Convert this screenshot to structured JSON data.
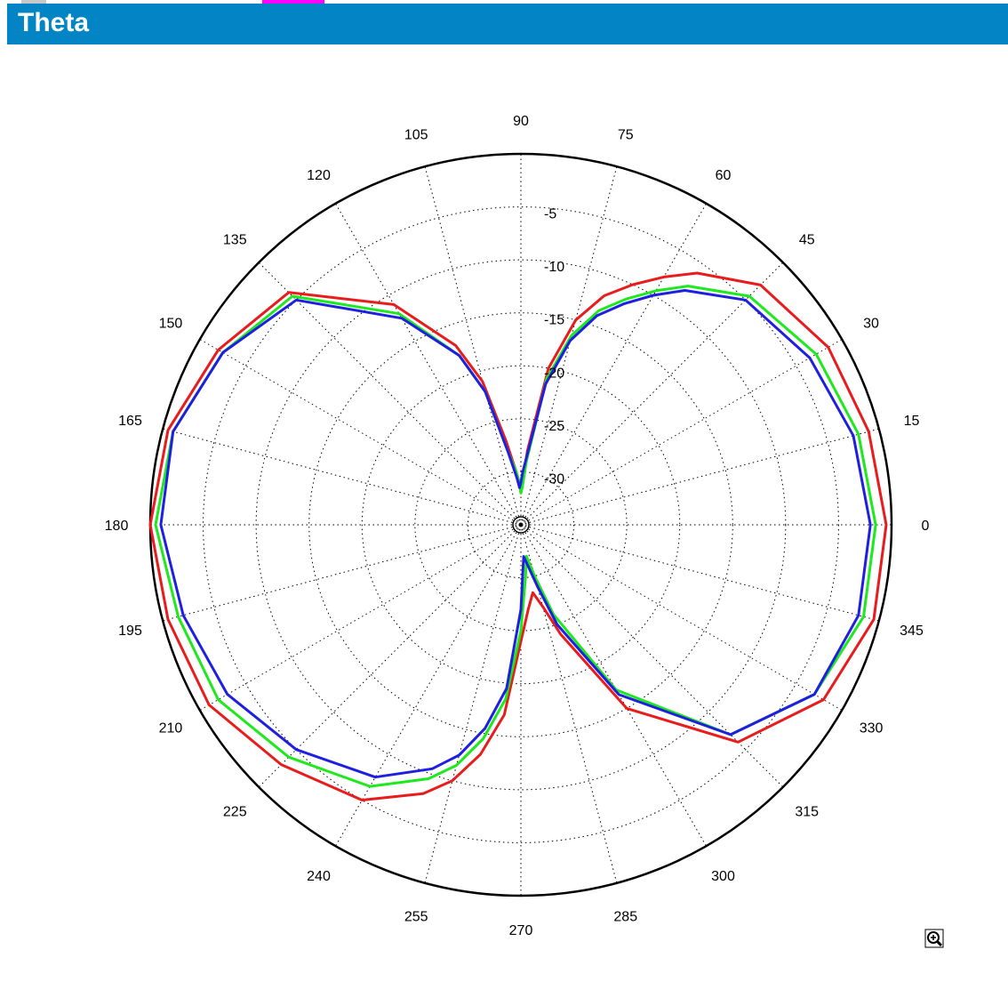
{
  "window": {
    "title": "Theta"
  },
  "colors": {
    "titlebar": "#0385c5",
    "tab_marker": "#ff00ff",
    "grid": "#000000"
  },
  "toolbar": {
    "zoom_icon": "zoom-in-icon"
  },
  "chart_data": {
    "type": "polar-line",
    "title": "",
    "angle_ticks": [
      "0",
      "15",
      "30",
      "45",
      "60",
      "75",
      "90",
      "105",
      "120",
      "135",
      "150",
      "165",
      "180",
      "195",
      "210",
      "225",
      "240",
      "255",
      "270",
      "285",
      "300",
      "315",
      "330",
      "345"
    ],
    "radial_ticks": [
      "-5",
      "-10",
      "-15",
      "-20",
      "-25",
      "-30"
    ],
    "rlim": [
      -35,
      0
    ],
    "grid": true,
    "series": [
      {
        "color": "#e81c1c",
        "theta": [
          0,
          15,
          30,
          45,
          55,
          60,
          65,
          70,
          75,
          80,
          85,
          88,
          90,
          92,
          95,
          100,
          105,
          110,
          120,
          135,
          150,
          165,
          180,
          195,
          210,
          225,
          240,
          250,
          255,
          260,
          265,
          270,
          275,
          280,
          285,
          290,
          300,
          315,
          330,
          345
        ],
        "r": [
          -0.5,
          -1,
          -1.5,
          -3,
          -6,
          -8,
          -10,
          -12,
          -15,
          -20,
          -28,
          -31,
          -32,
          -31,
          -30,
          -27,
          -21,
          -17,
          -11,
          -4,
          -2,
          -0.5,
          0,
          -0.5,
          -1,
          -3,
          -5,
          -8,
          -10,
          -13,
          -17,
          -24,
          -27,
          -28.5,
          -27,
          -24,
          -15,
          -6,
          -2,
          -0.5
        ]
      },
      {
        "color": "#1ee81e",
        "theta": [
          0,
          15,
          30,
          45,
          55,
          60,
          65,
          70,
          75,
          80,
          85,
          88,
          90,
          92,
          95,
          100,
          105,
          110,
          120,
          135,
          150,
          165,
          180,
          195,
          210,
          225,
          240,
          250,
          255,
          260,
          265,
          270,
          275,
          280,
          285,
          290,
          300,
          315,
          330,
          345
        ],
        "r": [
          -1.5,
          -2,
          -2.8,
          -4.5,
          -7.5,
          -9.5,
          -11.5,
          -13.5,
          -16.5,
          -21,
          -29,
          -31.5,
          -32,
          -31,
          -30,
          -28,
          -22,
          -18,
          -12,
          -4.5,
          -2.5,
          -1,
          -0.5,
          -1.5,
          -2,
          -4,
          -6.5,
          -9.5,
          -11.5,
          -14.5,
          -18.5,
          -25,
          -30,
          -32,
          -30,
          -26,
          -17,
          -7,
          -3,
          -1.5
        ]
      },
      {
        "color": "#1f1fe0",
        "theta": [
          0,
          15,
          30,
          45,
          55,
          60,
          65,
          70,
          75,
          80,
          85,
          88,
          90,
          92,
          95,
          100,
          105,
          110,
          120,
          135,
          150,
          165,
          180,
          195,
          210,
          225,
          240,
          250,
          255,
          260,
          265,
          270,
          275,
          280,
          285,
          290,
          300,
          315,
          330,
          345
        ],
        "r": [
          -2,
          -2.5,
          -3.5,
          -5,
          -8,
          -10,
          -12,
          -14,
          -17,
          -21.5,
          -28.5,
          -30,
          -31,
          -31.5,
          -30.5,
          -28,
          -22,
          -18,
          -12.5,
          -5,
          -2.5,
          -1,
          -1,
          -2,
          -3,
          -5,
          -7.5,
          -10.5,
          -12.5,
          -15.5,
          -19.5,
          -27,
          -32,
          -31,
          -29,
          -25,
          -16.5,
          -7,
          -3,
          -2
        ]
      }
    ]
  }
}
